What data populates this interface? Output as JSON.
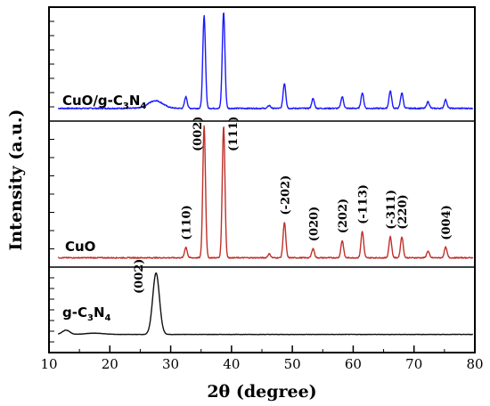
{
  "chart_data": {
    "type": "line",
    "xlabel": "2θ (degree)",
    "ylabel": "Intensity (a.u.)",
    "xlim": [
      10,
      80
    ],
    "xticks": [
      10,
      20,
      30,
      40,
      50,
      60,
      70,
      80
    ],
    "y_tick_labels": false,
    "grid": false,
    "series": [
      {
        "name": "CuO/g-C3N4",
        "label_parts": [
          {
            "t": "CuO/g-C",
            "s": false
          },
          {
            "t": "3",
            "s": true
          },
          {
            "t": "N",
            "s": false
          },
          {
            "t": "4",
            "s": true
          }
        ],
        "color": "#1a1aff",
        "baseline": 0.04,
        "noise": 0.012,
        "humps": [
          [
            27.5,
            0.08,
            1.2
          ]
        ],
        "peaks": [
          [
            32.5,
            0.12
          ],
          [
            35.5,
            0.96
          ],
          [
            38.7,
            1.0
          ],
          [
            46.2,
            0.03
          ],
          [
            48.7,
            0.26
          ],
          [
            53.4,
            0.1
          ],
          [
            58.2,
            0.12
          ],
          [
            61.5,
            0.16
          ],
          [
            66.1,
            0.18
          ],
          [
            68.0,
            0.16
          ],
          [
            72.3,
            0.07
          ],
          [
            75.2,
            0.09
          ]
        ]
      },
      {
        "name": "CuO",
        "label_parts": [
          {
            "t": "CuO",
            "s": false
          }
        ],
        "color": "#c0302a",
        "baseline": 0.01,
        "noise": 0.008,
        "humps": [],
        "peaks": [
          [
            32.5,
            0.08
          ],
          [
            35.5,
            1.0
          ],
          [
            38.7,
            1.0
          ],
          [
            46.2,
            0.03
          ],
          [
            48.7,
            0.27
          ],
          [
            53.4,
            0.07
          ],
          [
            58.2,
            0.13
          ],
          [
            61.5,
            0.2
          ],
          [
            66.1,
            0.16
          ],
          [
            68.0,
            0.16
          ],
          [
            72.3,
            0.05
          ],
          [
            75.2,
            0.08
          ]
        ],
        "peak_labels": [
          {
            "x": 32.5,
            "text": "(110)"
          },
          {
            "x": 35.5,
            "text": "(002)"
          },
          {
            "x": 38.7,
            "text": "(111)"
          },
          {
            "x": 48.7,
            "text": "(-202)"
          },
          {
            "x": 53.4,
            "text": "(020)"
          },
          {
            "x": 58.2,
            "text": "(202)"
          },
          {
            "x": 61.5,
            "text": "(-113)"
          },
          {
            "x": 66.1,
            "text": "(-311)"
          },
          {
            "x": 68.0,
            "text": "(220)"
          },
          {
            "x": 75.2,
            "text": "(004)"
          }
        ]
      },
      {
        "name": "g-C3N4",
        "label_parts": [
          {
            "t": "g-C",
            "s": false
          },
          {
            "t": "3",
            "s": true
          },
          {
            "t": "N",
            "s": false
          },
          {
            "t": "4",
            "s": true
          }
        ],
        "color": "#111111",
        "baseline": 0.02,
        "noise": 0.006,
        "humps": [
          [
            12.8,
            0.07,
            0.6
          ],
          [
            17.5,
            0.02,
            1.5
          ]
        ],
        "peaks": [
          [
            27.6,
            1.0
          ]
        ],
        "peak_labels": [
          {
            "x": 27.6,
            "text": "(002)"
          }
        ]
      }
    ]
  }
}
